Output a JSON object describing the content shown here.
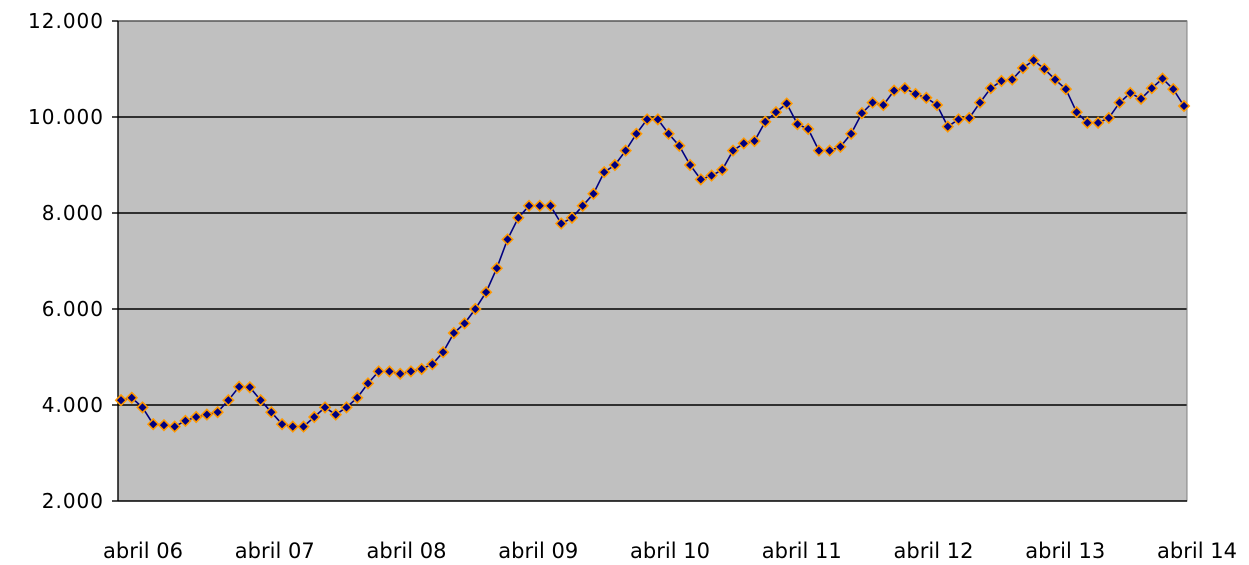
{
  "chart_data": {
    "type": "line",
    "title": "",
    "xlabel": "",
    "ylabel": "",
    "ylim": [
      2000,
      12000
    ],
    "y_ticks": [
      2000,
      4000,
      6000,
      8000,
      10000,
      12000
    ],
    "y_tick_labels": [
      "2.000",
      "4.000",
      "6.000",
      "8.000",
      "10.000",
      "12.000"
    ],
    "x_tick_labels": [
      "abril 06",
      "abril 07",
      "abril 08",
      "abril 09",
      "abril 10",
      "abril 11",
      "abril 12",
      "abril 13",
      "abril 14"
    ],
    "grid": true,
    "legend": "none",
    "colors": {
      "plot_background": "#c0c0c0",
      "line": "#000080",
      "marker_fill": "#000080",
      "marker_edge": "#ff9900",
      "gridline": "#000000"
    },
    "series": [
      {
        "values": [
          4100,
          4150,
          3950,
          3600,
          3580,
          3550,
          3670,
          3750,
          3800,
          3850,
          4100,
          4380,
          4370,
          4100,
          3850,
          3600,
          3550,
          3550,
          3750,
          3950,
          3800,
          3950,
          4150,
          4450,
          4700,
          4700,
          4650,
          4700,
          4750,
          4850,
          5100,
          5500,
          5700,
          6000,
          6350,
          6850,
          7450,
          7900,
          8150,
          8150,
          8150,
          7780,
          7900,
          8150,
          8400,
          8850,
          9000,
          9300,
          9650,
          9950,
          9950,
          9650,
          9400,
          9000,
          8700,
          8780,
          8900,
          9300,
          9450,
          9500,
          9900,
          10100,
          10280,
          9850,
          9750,
          9300,
          9300,
          9380,
          9650,
          10080,
          10300,
          10250,
          10550,
          10600,
          10480,
          10400,
          10250,
          9800,
          9950,
          9980,
          10300,
          10600,
          10750,
          10780,
          11020,
          11180,
          11000,
          10780,
          10580,
          10100,
          9880,
          9880,
          9980,
          10300,
          10500,
          10380,
          10600,
          10800,
          10580,
          10230
        ]
      }
    ]
  }
}
